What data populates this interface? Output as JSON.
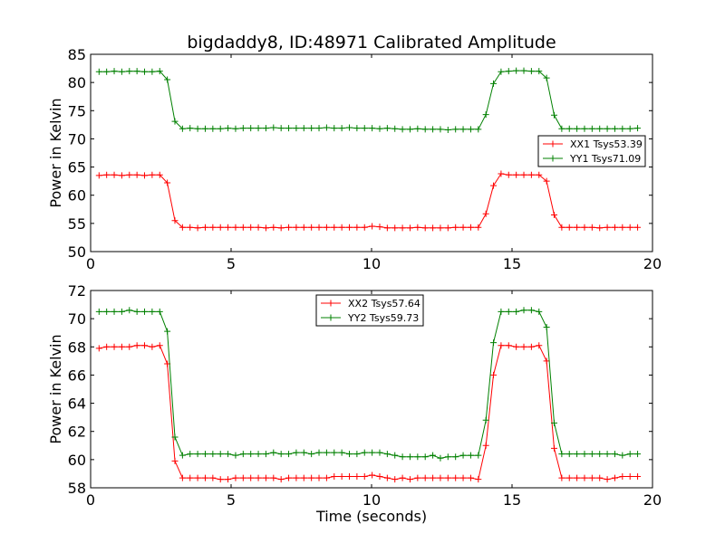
{
  "chart_data": [
    {
      "type": "line",
      "title": "bigdaddy8, ID:48971 Calibrated Amplitude",
      "xlabel": "",
      "ylabel": "Power in Kelvin",
      "xlim": [
        0,
        20
      ],
      "ylim": [
        50,
        85
      ],
      "xticks": [
        "0",
        "5",
        "10",
        "15",
        "20"
      ],
      "yticks": [
        "50",
        "55",
        "60",
        "65",
        "70",
        "75",
        "80",
        "85"
      ],
      "grid": false,
      "legend_position": "right",
      "x": [
        0.3,
        0.57,
        0.84,
        1.11,
        1.38,
        1.65,
        1.92,
        2.19,
        2.46,
        2.73,
        3.0,
        3.27,
        3.54,
        3.81,
        4.08,
        4.35,
        4.62,
        4.89,
        5.16,
        5.43,
        5.7,
        5.97,
        6.24,
        6.51,
        6.78,
        7.05,
        7.32,
        7.59,
        7.86,
        8.13,
        8.4,
        8.67,
        8.94,
        9.21,
        9.48,
        9.75,
        10.02,
        10.29,
        10.56,
        10.83,
        11.1,
        11.37,
        11.64,
        11.91,
        12.18,
        12.45,
        12.72,
        12.99,
        13.26,
        13.53,
        13.8,
        14.07,
        14.34,
        14.61,
        14.88,
        15.15,
        15.42,
        15.69,
        15.96,
        16.23,
        16.5,
        16.77,
        17.04,
        17.31,
        17.58,
        17.85,
        18.12,
        18.39,
        18.66,
        18.93,
        19.2,
        19.47
      ],
      "series": [
        {
          "name": "XX1 Tsys53.39",
          "color": "#ff0000",
          "values": [
            63.5,
            63.6,
            63.6,
            63.5,
            63.6,
            63.6,
            63.5,
            63.6,
            63.6,
            62.2,
            55.5,
            54.3,
            54.3,
            54.2,
            54.3,
            54.3,
            54.3,
            54.3,
            54.3,
            54.3,
            54.3,
            54.3,
            54.2,
            54.3,
            54.2,
            54.3,
            54.3,
            54.3,
            54.3,
            54.3,
            54.3,
            54.3,
            54.3,
            54.3,
            54.3,
            54.3,
            54.5,
            54.4,
            54.2,
            54.2,
            54.2,
            54.2,
            54.3,
            54.2,
            54.2,
            54.2,
            54.2,
            54.3,
            54.3,
            54.3,
            54.3,
            56.7,
            61.7,
            63.8,
            63.6,
            63.6,
            63.6,
            63.6,
            63.6,
            62.5,
            56.5,
            54.3,
            54.3,
            54.3,
            54.3,
            54.3,
            54.2,
            54.3,
            54.3,
            54.3,
            54.3,
            54.3
          ]
        },
        {
          "name": "YY1 Tsys71.09",
          "color": "#008000",
          "values": [
            81.9,
            81.9,
            82.0,
            81.9,
            82.0,
            82.0,
            81.9,
            81.9,
            82.0,
            80.5,
            73.1,
            71.8,
            71.9,
            71.8,
            71.8,
            71.8,
            71.8,
            71.9,
            71.8,
            71.9,
            71.9,
            71.9,
            71.9,
            72.0,
            71.9,
            71.9,
            71.9,
            71.9,
            71.9,
            71.9,
            72.0,
            71.9,
            71.9,
            72.0,
            71.9,
            71.9,
            71.9,
            71.8,
            71.9,
            71.8,
            71.7,
            71.7,
            71.8,
            71.7,
            71.7,
            71.7,
            71.6,
            71.7,
            71.7,
            71.7,
            71.7,
            74.3,
            79.8,
            81.9,
            82.0,
            82.1,
            82.1,
            82.0,
            82.0,
            80.8,
            74.2,
            71.8,
            71.8,
            71.8,
            71.8,
            71.8,
            71.8,
            71.8,
            71.8,
            71.8,
            71.8,
            71.9
          ]
        }
      ]
    },
    {
      "type": "line",
      "title": "",
      "xlabel": "Time (seconds)",
      "ylabel": "Power in Kelvin",
      "xlim": [
        0,
        20
      ],
      "ylim": [
        58,
        72
      ],
      "xticks": [
        "0",
        "5",
        "10",
        "15",
        "20"
      ],
      "yticks": [
        "58",
        "60",
        "62",
        "64",
        "66",
        "68",
        "70",
        "72"
      ],
      "grid": false,
      "legend_position": "top-center",
      "x": [
        0.3,
        0.57,
        0.84,
        1.11,
        1.38,
        1.65,
        1.92,
        2.19,
        2.46,
        2.73,
        3.0,
        3.27,
        3.54,
        3.81,
        4.08,
        4.35,
        4.62,
        4.89,
        5.16,
        5.43,
        5.7,
        5.97,
        6.24,
        6.51,
        6.78,
        7.05,
        7.32,
        7.59,
        7.86,
        8.13,
        8.4,
        8.67,
        8.94,
        9.21,
        9.48,
        9.75,
        10.02,
        10.29,
        10.56,
        10.83,
        11.1,
        11.37,
        11.64,
        11.91,
        12.18,
        12.45,
        12.72,
        12.99,
        13.26,
        13.53,
        13.8,
        14.07,
        14.34,
        14.61,
        14.88,
        15.15,
        15.42,
        15.69,
        15.96,
        16.23,
        16.5,
        16.77,
        17.04,
        17.31,
        17.58,
        17.85,
        18.12,
        18.39,
        18.66,
        18.93,
        19.2,
        19.47
      ],
      "series": [
        {
          "name": "XX2 Tsys57.64",
          "color": "#ff0000",
          "values": [
            67.9,
            68.0,
            68.0,
            68.0,
            68.0,
            68.1,
            68.1,
            68.0,
            68.1,
            66.8,
            59.9,
            58.7,
            58.7,
            58.7,
            58.7,
            58.7,
            58.6,
            58.6,
            58.7,
            58.7,
            58.7,
            58.7,
            58.7,
            58.7,
            58.6,
            58.7,
            58.7,
            58.7,
            58.7,
            58.7,
            58.7,
            58.8,
            58.8,
            58.8,
            58.8,
            58.8,
            58.9,
            58.8,
            58.7,
            58.6,
            58.7,
            58.6,
            58.7,
            58.7,
            58.7,
            58.7,
            58.7,
            58.7,
            58.7,
            58.7,
            58.6,
            61.0,
            66.0,
            68.1,
            68.1,
            68.0,
            68.0,
            68.0,
            68.1,
            67.0,
            60.8,
            58.7,
            58.7,
            58.7,
            58.7,
            58.7,
            58.7,
            58.6,
            58.7,
            58.8,
            58.8,
            58.8
          ]
        },
        {
          "name": "YY2 Tsys59.73",
          "color": "#008000",
          "values": [
            70.5,
            70.5,
            70.5,
            70.5,
            70.6,
            70.5,
            70.5,
            70.5,
            70.5,
            69.1,
            61.6,
            60.3,
            60.4,
            60.4,
            60.4,
            60.4,
            60.4,
            60.4,
            60.3,
            60.4,
            60.4,
            60.4,
            60.4,
            60.5,
            60.4,
            60.4,
            60.5,
            60.5,
            60.4,
            60.5,
            60.5,
            60.5,
            60.5,
            60.4,
            60.4,
            60.5,
            60.5,
            60.5,
            60.4,
            60.3,
            60.2,
            60.2,
            60.2,
            60.2,
            60.3,
            60.1,
            60.2,
            60.2,
            60.3,
            60.3,
            60.3,
            62.8,
            68.3,
            70.5,
            70.5,
            70.5,
            70.6,
            70.6,
            70.5,
            69.4,
            62.6,
            60.4,
            60.4,
            60.4,
            60.4,
            60.4,
            60.4,
            60.4,
            60.4,
            60.3,
            60.4,
            60.4
          ]
        }
      ]
    }
  ]
}
